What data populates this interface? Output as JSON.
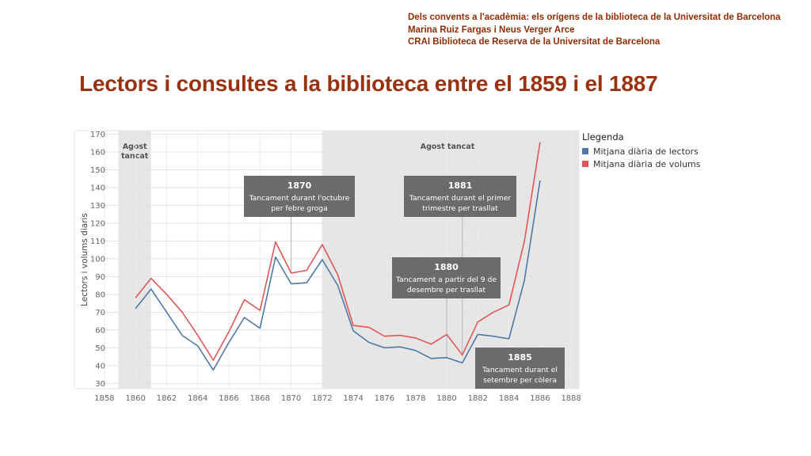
{
  "header": {
    "line1": "Dels convents a l'acadèmia: els orígens de la biblioteca de la Universitat de Barcelona",
    "line2": "Marina Ruiz Fargas i Neus Verger Arce",
    "line3": "CRAI Biblioteca de Reserva de la Universitat de Barcelona"
  },
  "title": "Lectors i consultes a la biblioteca entre el 1859 i el 1887",
  "colors": {
    "title": "#9a3210",
    "lectors": "#4e79a7",
    "volums": "#e15759",
    "shade": "#e6e6e6",
    "annotation_bg": "#6b6b6b"
  },
  "chart_data": {
    "type": "line",
    "ylabel": "Lectors i volums diaris",
    "xlabel": "",
    "xlim": [
      1857.5,
      1888.5
    ],
    "ylim": [
      27,
      172
    ],
    "x_ticks": [
      1858,
      1860,
      1862,
      1864,
      1866,
      1868,
      1870,
      1872,
      1874,
      1876,
      1878,
      1880,
      1882,
      1884,
      1886,
      1888
    ],
    "y_ticks": [
      30,
      40,
      50,
      60,
      70,
      80,
      90,
      100,
      110,
      120,
      130,
      140,
      150,
      160,
      170
    ],
    "grid": true,
    "legend_title": "Llegenda",
    "legend_position": "right",
    "x": [
      1860,
      1861,
      1862,
      1863,
      1864,
      1865,
      1866,
      1867,
      1868,
      1869,
      1870,
      1871,
      1872,
      1873,
      1874,
      1875,
      1876,
      1877,
      1878,
      1879,
      1880,
      1881,
      1882,
      1883,
      1884,
      1885,
      1886
    ],
    "series": [
      {
        "name": "Mitjana diària de lectors",
        "values": [
          72,
          83,
          70,
          57,
          51,
          37.5,
          53,
          67,
          61,
          101,
          86,
          86.5,
          99.5,
          85,
          59.5,
          53,
          50,
          50.5,
          48.5,
          44,
          44.5,
          41.5,
          57.5,
          56.5,
          55,
          88,
          144
        ]
      },
      {
        "name": "Mitjana diària de volums",
        "values": [
          78,
          89,
          80,
          70,
          57,
          43,
          59,
          77,
          71,
          109.5,
          92,
          93.5,
          108,
          91,
          62.5,
          61.5,
          56.5,
          57,
          55.5,
          52,
          57.5,
          46,
          64.5,
          70,
          74,
          110,
          165.5
        ]
      }
    ],
    "shaded_periods": [
      {
        "label": "Agost\ntancat",
        "from": 1858.9,
        "to": 1861
      },
      {
        "label": "Agost tancat",
        "from": 1872,
        "to": 1888.5
      }
    ],
    "annotations": [
      {
        "title": "1870",
        "text": "Tancament durant l'octubre\nper febre groga",
        "x": 1870
      },
      {
        "title": "1881",
        "text": "Tancament durant el primer\ntrimestre per trasllat",
        "x": 1881
      },
      {
        "title": "1880",
        "text": "Tancament a partir del 9 de\ndesembre per trasllat",
        "x": 1880
      },
      {
        "title": "1885",
        "text": "Tancament durant el\nsetembre per còlera",
        "x": 1885
      }
    ]
  }
}
